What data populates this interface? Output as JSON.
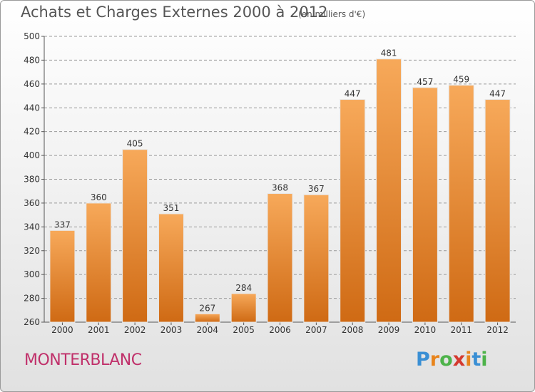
{
  "title": "Achats et Charges Externes 2000 à 2012",
  "unit_note": "(en milliers d'€)",
  "commune": "MONTERBLANC",
  "logo": {
    "letters": [
      "P",
      "r",
      "o",
      "x",
      "i",
      "t",
      "i"
    ],
    "colors": [
      "#3a8fd4",
      "#e8841c",
      "#4db34a",
      "#d43a2f",
      "#e8841c",
      "#3a8fd4",
      "#4db34a"
    ]
  },
  "colors": {
    "bar_top": "#f7a95a",
    "bar_bottom": "#cf6a14",
    "commune": "#c0306a"
  },
  "chart_data": {
    "type": "bar",
    "title": "Achats et Charges Externes 2000 à 2012",
    "subtitle": "(en milliers d'€)",
    "categories": [
      "2000",
      "2001",
      "2002",
      "2003",
      "2004",
      "2005",
      "2006",
      "2007",
      "2008",
      "2009",
      "2010",
      "2011",
      "2012"
    ],
    "values": [
      337,
      360,
      405,
      351,
      267,
      284,
      368,
      367,
      447,
      481,
      457,
      459,
      447
    ],
    "ylim": [
      260,
      500
    ],
    "yticks": [
      260,
      280,
      300,
      320,
      340,
      360,
      380,
      400,
      420,
      440,
      460,
      480,
      500
    ],
    "grid": "dashed horizontal",
    "xlabel": "",
    "ylabel": ""
  }
}
